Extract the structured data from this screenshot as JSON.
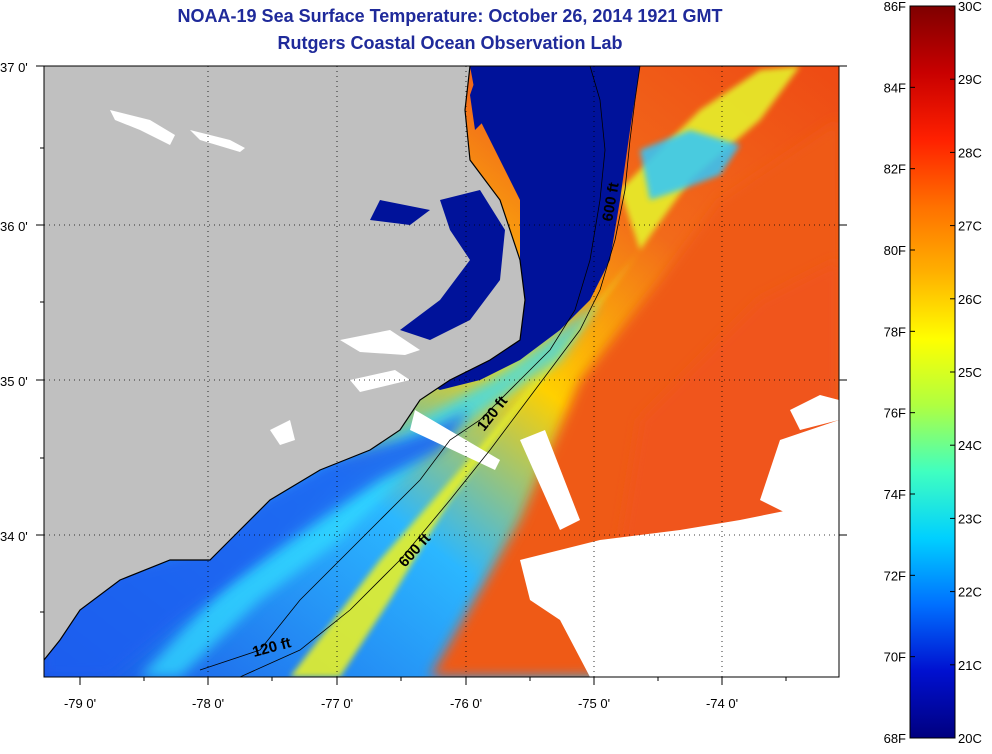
{
  "title": "NOAA-19 Sea Surface Temperature:  October 26, 2014 1921 GMT",
  "subtitle": "Rutgers Coastal Ocean Observation Lab",
  "map": {
    "lat_labels": [
      "37 0'",
      "36 0'",
      "35 0'",
      "34 0'"
    ],
    "lon_labels": [
      "-79 0'",
      "-78 0'",
      "-77 0'",
      "-76 0'",
      "-75 0'",
      "-74 0'"
    ],
    "contour_labels": [
      "600 ft",
      "120 ft",
      "600 ft",
      "120 ft"
    ]
  },
  "colorbar": {
    "fahrenheit_labels": [
      "86F",
      "84F",
      "82F",
      "80F",
      "78F",
      "76F",
      "74F",
      "72F",
      "70F",
      "68F"
    ],
    "celsius_labels": [
      "30C",
      "29C",
      "28C",
      "27C",
      "26C",
      "25C",
      "24C",
      "23C",
      "22C",
      "21C",
      "20C"
    ],
    "colors": [
      "#7f0000",
      "#c80000",
      "#ff2000",
      "#ff7000",
      "#ffb000",
      "#ffff00",
      "#b0ff40",
      "#40ffc0",
      "#00d0ff",
      "#0070ff",
      "#0010d0",
      "#00007f"
    ]
  },
  "colors": {
    "land": "#c0c0c0",
    "cold_water": "#00129a",
    "warm_water": "#f2611c",
    "clouds": "#ffffff",
    "title": "#1f2a9a"
  }
}
